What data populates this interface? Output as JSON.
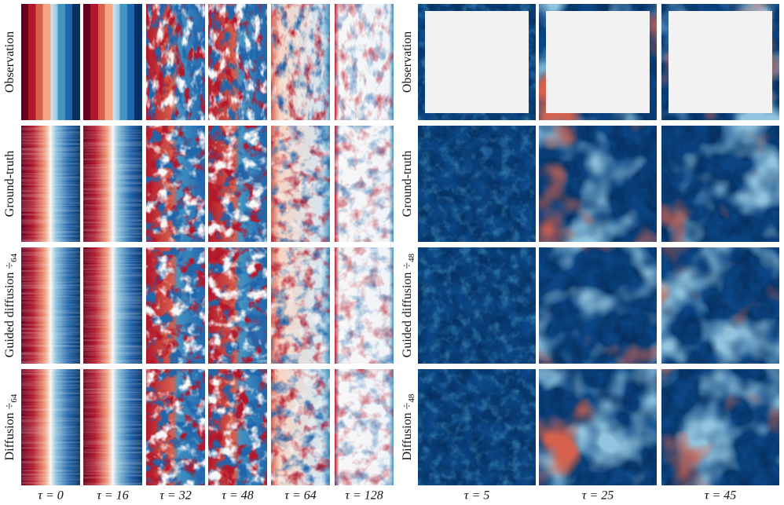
{
  "left": {
    "rows": [
      {
        "text": "Observation"
      },
      {
        "text": "Ground-truth"
      },
      {
        "text": "Guided diffusion ÷",
        "sub": "64"
      },
      {
        "text": "Diffusion ÷",
        "sub": "64"
      }
    ],
    "columns": [
      "τ = 0",
      "τ = 16",
      "τ = 32",
      "τ = 48",
      "τ = 64",
      "τ = 128"
    ]
  },
  "right": {
    "rows": [
      {
        "text": "Observation"
      },
      {
        "text": "Ground-truth"
      },
      {
        "text": "Guided diffusion ÷",
        "sub": "48"
      },
      {
        "text": "Diffusion ÷",
        "sub": "48"
      }
    ],
    "columns": [
      "τ = 5",
      "τ = 25",
      "τ = 45"
    ]
  }
}
